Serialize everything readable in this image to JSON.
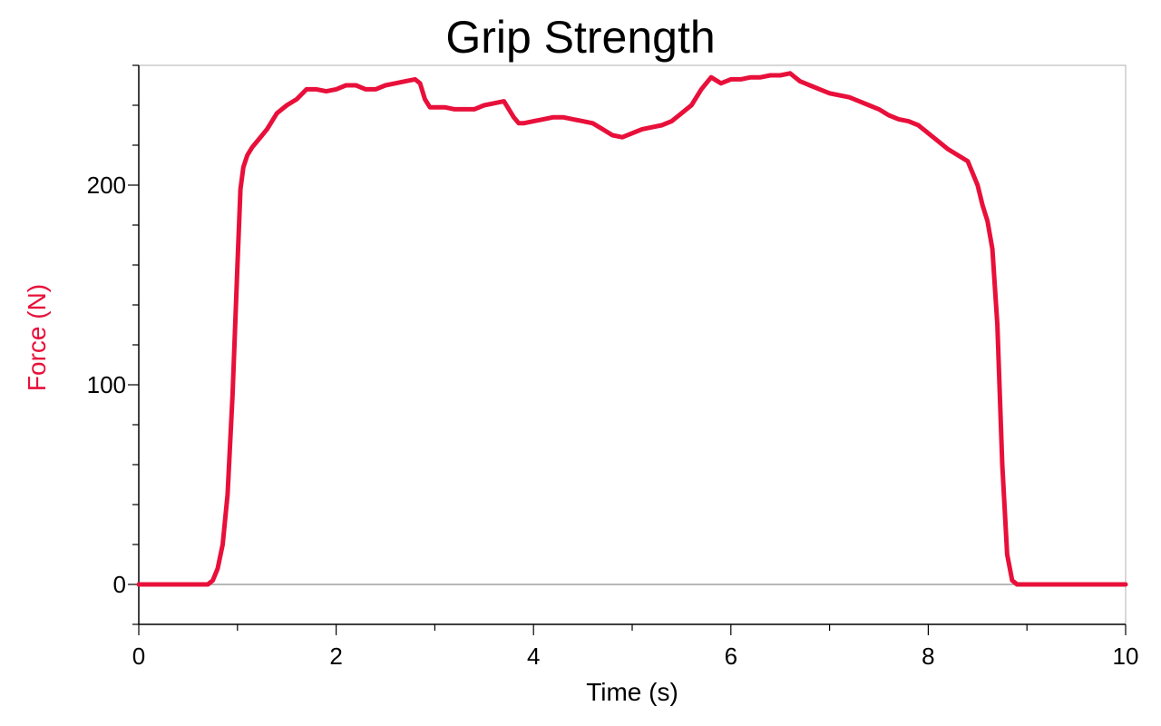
{
  "chart_data": {
    "type": "line",
    "title": "Grip Strength",
    "xlabel": "Time (s)",
    "ylabel": "Force (N)",
    "xlim": [
      0,
      10
    ],
    "ylim": [
      -20,
      260
    ],
    "x_ticks": [
      0,
      2,
      4,
      6,
      8,
      10
    ],
    "y_ticks": [
      0,
      100,
      200
    ],
    "x_tick_labels": [
      "0",
      "2",
      "4",
      "6",
      "8",
      "10"
    ],
    "y_tick_labels": [
      "0",
      "100",
      "200"
    ],
    "grid": false,
    "legend": "none",
    "colors": {
      "series": "#e8103a",
      "axis_label": "#e8103a",
      "frame": "#b0b0b0",
      "zero_line": "#a0a0a0"
    },
    "series": [
      {
        "x": [
          0,
          0.3,
          0.6,
          0.7,
          0.75,
          0.8,
          0.85,
          0.9,
          0.95,
          1.0,
          1.03,
          1.06,
          1.1,
          1.15,
          1.2,
          1.3,
          1.4,
          1.5,
          1.6,
          1.7,
          1.8,
          1.9,
          2.0,
          2.1,
          2.2,
          2.3,
          2.4,
          2.5,
          2.6,
          2.7,
          2.8,
          2.85,
          2.9,
          2.95,
          3.0,
          3.1,
          3.2,
          3.3,
          3.4,
          3.5,
          3.6,
          3.7,
          3.8,
          3.85,
          3.9,
          4.0,
          4.1,
          4.2,
          4.3,
          4.4,
          4.5,
          4.6,
          4.7,
          4.8,
          4.9,
          5.0,
          5.1,
          5.2,
          5.3,
          5.4,
          5.5,
          5.6,
          5.7,
          5.8,
          5.9,
          6.0,
          6.1,
          6.2,
          6.3,
          6.4,
          6.5,
          6.6,
          6.7,
          6.8,
          6.9,
          7.0,
          7.1,
          7.2,
          7.3,
          7.4,
          7.5,
          7.6,
          7.7,
          7.8,
          7.9,
          8.0,
          8.1,
          8.2,
          8.3,
          8.4,
          8.5,
          8.55,
          8.6,
          8.65,
          8.7,
          8.75,
          8.8,
          8.85,
          8.9,
          8.95,
          9.0,
          9.5,
          10.0
        ],
        "y": [
          0,
          0,
          0,
          0,
          2,
          8,
          20,
          45,
          95,
          160,
          198,
          209,
          215,
          219,
          222,
          228,
          236,
          240,
          243,
          248,
          248,
          247,
          248,
          250,
          250,
          248,
          248,
          250,
          251,
          252,
          253,
          251,
          243,
          239,
          239,
          239,
          238,
          238,
          238,
          240,
          241,
          242,
          234,
          231,
          231,
          232,
          233,
          234,
          234,
          233,
          232,
          231,
          228,
          225,
          224,
          226,
          228,
          229,
          230,
          232,
          236,
          240,
          248,
          254,
          251,
          253,
          253,
          254,
          254,
          255,
          255,
          256,
          252,
          250,
          248,
          246,
          245,
          244,
          242,
          240,
          238,
          235,
          233,
          232,
          230,
          226,
          222,
          218,
          215,
          212,
          200,
          190,
          182,
          168,
          130,
          60,
          15,
          2,
          0,
          0,
          0,
          0,
          0
        ]
      }
    ]
  }
}
